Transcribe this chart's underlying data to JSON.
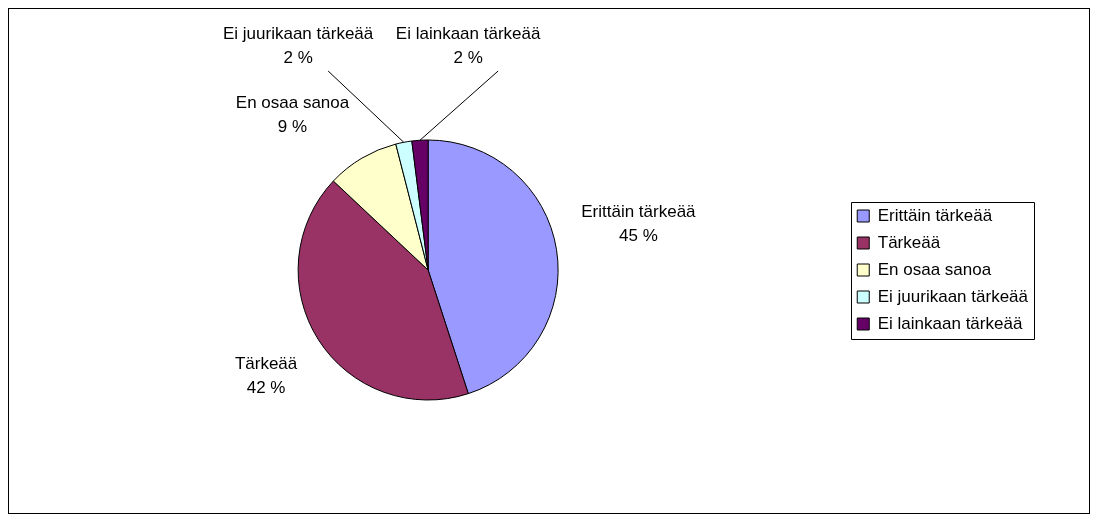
{
  "chart_data": {
    "type": "pie",
    "categories": [
      "Erittäin tärkeää",
      "Tärkeää",
      "En osaa sanoa",
      "Ei juurikaan tärkeää",
      "Ei lainkaan tärkeää"
    ],
    "values": [
      45,
      42,
      9,
      2,
      2
    ],
    "colors": [
      "#9999ff",
      "#993366",
      "#ffffcc",
      "#ccffff",
      "#660066"
    ],
    "value_labels": [
      "45 %",
      "42 %",
      "9 %",
      "2 %",
      "2 %"
    ],
    "legend": "right"
  }
}
